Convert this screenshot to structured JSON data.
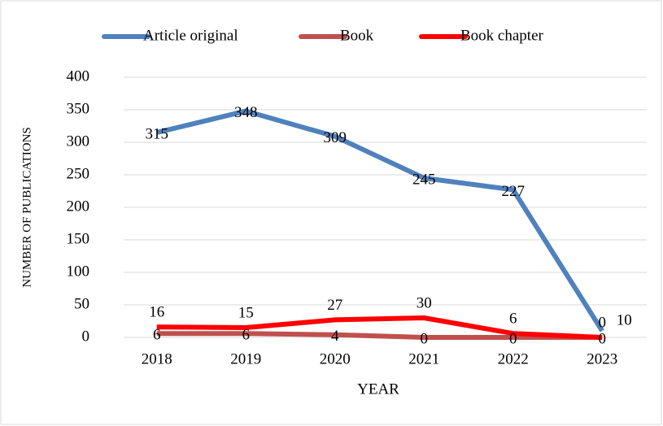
{
  "chart_data": {
    "type": "line",
    "categories": [
      "2018",
      "2019",
      "2020",
      "2021",
      "2022",
      "2023"
    ],
    "series": [
      {
        "name": "Article original",
        "color": "#4f81bd",
        "values": [
          315,
          348,
          309,
          245,
          227,
          10
        ]
      },
      {
        "name": "Book",
        "color": "#c0504d",
        "values": [
          6,
          6,
          4,
          0,
          0,
          0
        ]
      },
      {
        "name": "Book chapter",
        "color": "#ff0000",
        "values": [
          16,
          15,
          27,
          30,
          6,
          0
        ]
      }
    ],
    "ylim": [
      0,
      400
    ],
    "yticks": [
      0,
      50,
      100,
      150,
      200,
      250,
      300,
      350,
      400
    ],
    "xlabel": "YEAR",
    "ylabel": "NUMBER OF PUBLICATIONS",
    "grid": true,
    "legend": "top"
  }
}
